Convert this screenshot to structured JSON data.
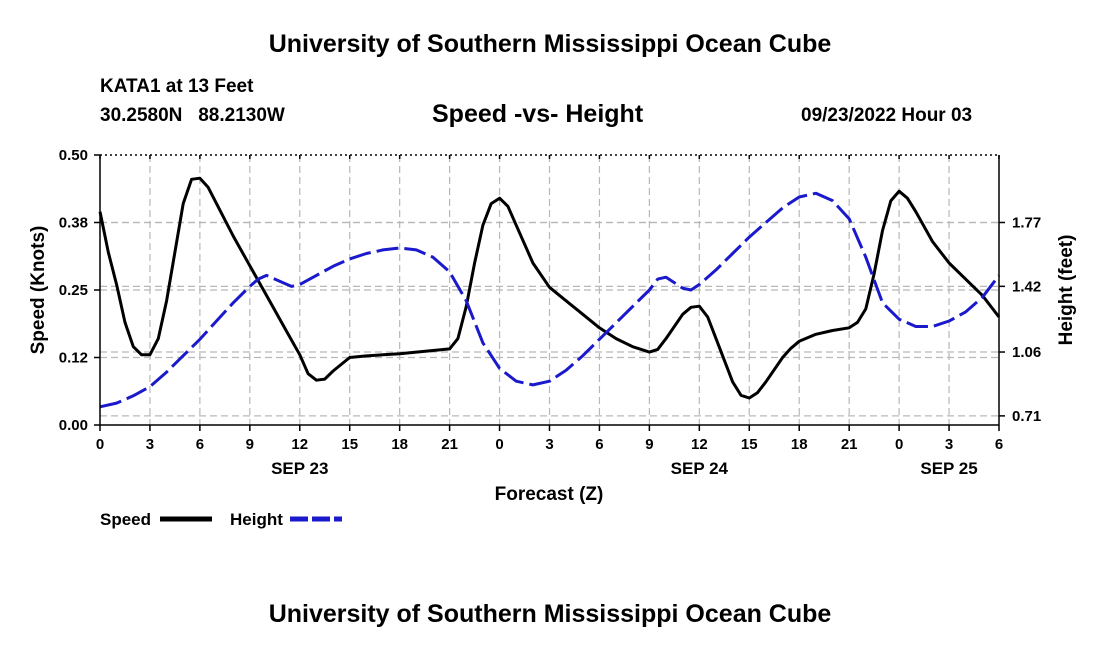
{
  "header": {
    "title": "University of Southern Mississippi Ocean Cube",
    "station": "KATA1 at 13 Feet",
    "coordinates": "30.2580N   88.2130W",
    "subtitle": "Speed -vs- Height",
    "datetime": "09/23/2022 Hour 03"
  },
  "footer": {
    "title": "University of Southern Mississippi Ocean Cube"
  },
  "chart_data": {
    "type": "line",
    "title": "Speed -vs- Height",
    "xlabel": "Forecast (Z)",
    "ylabel_left": "Speed (Knots)",
    "ylabel_right": "Height (feet)",
    "x_range_hours": [
      0,
      54
    ],
    "x_ticks": [
      {
        "hour": 0,
        "label": "0"
      },
      {
        "hour": 3,
        "label": "3"
      },
      {
        "hour": 6,
        "label": "6"
      },
      {
        "hour": 9,
        "label": "9"
      },
      {
        "hour": 12,
        "label": "12"
      },
      {
        "hour": 15,
        "label": "15"
      },
      {
        "hour": 18,
        "label": "18"
      },
      {
        "hour": 21,
        "label": "21"
      },
      {
        "hour": 24,
        "label": "0"
      },
      {
        "hour": 27,
        "label": "3"
      },
      {
        "hour": 30,
        "label": "6"
      },
      {
        "hour": 33,
        "label": "9"
      },
      {
        "hour": 36,
        "label": "12"
      },
      {
        "hour": 39,
        "label": "15"
      },
      {
        "hour": 42,
        "label": "18"
      },
      {
        "hour": 45,
        "label": "21"
      },
      {
        "hour": 48,
        "label": "0"
      },
      {
        "hour": 51,
        "label": "3"
      },
      {
        "hour": 54,
        "label": "6"
      }
    ],
    "date_labels": [
      {
        "hour": 12,
        "label": "SEP 23"
      },
      {
        "hour": 36,
        "label": "SEP 24"
      },
      {
        "hour": 51,
        "label": "SEP 25"
      }
    ],
    "y_left": {
      "range": [
        0,
        0.5
      ],
      "ticks": [
        {
          "value": 0.0,
          "label": "0.00"
        },
        {
          "value": 0.125,
          "label": "0.12"
        },
        {
          "value": 0.25,
          "label": "0.25"
        },
        {
          "value": 0.375,
          "label": "0.38"
        },
        {
          "value": 0.5,
          "label": "0.50"
        }
      ]
    },
    "y_right": {
      "range": [
        0.66,
        2.14
      ],
      "ticks": [
        {
          "value": 0.71,
          "label": "0.71"
        },
        {
          "value": 1.06,
          "label": "1.06"
        },
        {
          "value": 1.42,
          "label": "1.42"
        },
        {
          "value": 1.77,
          "label": "1.77"
        }
      ]
    },
    "grid": true,
    "series": [
      {
        "name": "Speed",
        "axis": "left",
        "color": "#000000",
        "style": "solid",
        "points": [
          [
            0,
            0.395
          ],
          [
            0.5,
            0.32
          ],
          [
            1,
            0.26
          ],
          [
            1.5,
            0.19
          ],
          [
            2,
            0.145
          ],
          [
            2.5,
            0.13
          ],
          [
            3,
            0.13
          ],
          [
            3.5,
            0.16
          ],
          [
            4,
            0.23
          ],
          [
            4.5,
            0.32
          ],
          [
            5,
            0.41
          ],
          [
            5.5,
            0.455
          ],
          [
            6,
            0.457
          ],
          [
            6.5,
            0.44
          ],
          [
            7,
            0.41
          ],
          [
            8,
            0.35
          ],
          [
            9,
            0.295
          ],
          [
            10,
            0.24
          ],
          [
            11,
            0.185
          ],
          [
            12,
            0.13
          ],
          [
            12.5,
            0.095
          ],
          [
            13,
            0.083
          ],
          [
            13.5,
            0.085
          ],
          [
            14,
            0.1
          ],
          [
            15,
            0.125
          ],
          [
            16,
            0.128
          ],
          [
            17,
            0.13
          ],
          [
            18,
            0.132
          ],
          [
            19,
            0.135
          ],
          [
            20,
            0.138
          ],
          [
            21,
            0.141
          ],
          [
            21.5,
            0.16
          ],
          [
            22,
            0.22
          ],
          [
            22.5,
            0.3
          ],
          [
            23,
            0.37
          ],
          [
            23.5,
            0.41
          ],
          [
            24,
            0.42
          ],
          [
            24.5,
            0.405
          ],
          [
            25,
            0.37
          ],
          [
            26,
            0.3
          ],
          [
            27,
            0.255
          ],
          [
            28,
            0.23
          ],
          [
            29,
            0.205
          ],
          [
            30,
            0.18
          ],
          [
            31,
            0.16
          ],
          [
            32,
            0.145
          ],
          [
            33,
            0.135
          ],
          [
            33.5,
            0.14
          ],
          [
            34,
            0.16
          ],
          [
            35,
            0.205
          ],
          [
            35.5,
            0.218
          ],
          [
            36,
            0.22
          ],
          [
            36.5,
            0.2
          ],
          [
            37,
            0.16
          ],
          [
            38,
            0.08
          ],
          [
            38.5,
            0.055
          ],
          [
            39,
            0.05
          ],
          [
            39.5,
            0.06
          ],
          [
            40,
            0.08
          ],
          [
            41,
            0.125
          ],
          [
            41.5,
            0.142
          ],
          [
            42,
            0.155
          ],
          [
            43,
            0.168
          ],
          [
            44,
            0.175
          ],
          [
            45,
            0.18
          ],
          [
            45.5,
            0.19
          ],
          [
            46,
            0.215
          ],
          [
            46.5,
            0.28
          ],
          [
            47,
            0.36
          ],
          [
            47.5,
            0.415
          ],
          [
            48,
            0.433
          ],
          [
            48.5,
            0.42
          ],
          [
            49,
            0.395
          ],
          [
            50,
            0.34
          ],
          [
            51,
            0.3
          ],
          [
            52,
            0.27
          ],
          [
            53,
            0.24
          ],
          [
            54,
            0.2
          ]
        ]
      },
      {
        "name": "Height",
        "axis": "right",
        "color": "#1a1acc",
        "style": "dashed",
        "points": [
          [
            0,
            0.76
          ],
          [
            1,
            0.78
          ],
          [
            2,
            0.82
          ],
          [
            3,
            0.87
          ],
          [
            4,
            0.95
          ],
          [
            5,
            1.04
          ],
          [
            6,
            1.13
          ],
          [
            7,
            1.23
          ],
          [
            8,
            1.33
          ],
          [
            9,
            1.42
          ],
          [
            9.5,
            1.46
          ],
          [
            10,
            1.48
          ],
          [
            11,
            1.44
          ],
          [
            11.5,
            1.42
          ],
          [
            12,
            1.43
          ],
          [
            13,
            1.48
          ],
          [
            14,
            1.53
          ],
          [
            15,
            1.57
          ],
          [
            16,
            1.6
          ],
          [
            17,
            1.62
          ],
          [
            18,
            1.63
          ],
          [
            19,
            1.62
          ],
          [
            20,
            1.58
          ],
          [
            21,
            1.5
          ],
          [
            22,
            1.34
          ],
          [
            23,
            1.11
          ],
          [
            24,
            0.97
          ],
          [
            25,
            0.9
          ],
          [
            26,
            0.88
          ],
          [
            27,
            0.9
          ],
          [
            28,
            0.96
          ],
          [
            29,
            1.04
          ],
          [
            30,
            1.13
          ],
          [
            31,
            1.22
          ],
          [
            32,
            1.31
          ],
          [
            33,
            1.4
          ],
          [
            33.5,
            1.46
          ],
          [
            34,
            1.47
          ],
          [
            35,
            1.41
          ],
          [
            35.5,
            1.4
          ],
          [
            36,
            1.43
          ],
          [
            37,
            1.51
          ],
          [
            38,
            1.6
          ],
          [
            39,
            1.69
          ],
          [
            40,
            1.77
          ],
          [
            41,
            1.85
          ],
          [
            42,
            1.91
          ],
          [
            43,
            1.93
          ],
          [
            44,
            1.89
          ],
          [
            45,
            1.79
          ],
          [
            46,
            1.58
          ],
          [
            47,
            1.33
          ],
          [
            48,
            1.24
          ],
          [
            49,
            1.2
          ],
          [
            50,
            1.2
          ],
          [
            51,
            1.23
          ],
          [
            52,
            1.28
          ],
          [
            53,
            1.36
          ],
          [
            54,
            1.48
          ]
        ]
      }
    ],
    "legend": {
      "position": "bottom-left",
      "entries": [
        "Speed",
        "Height"
      ]
    }
  }
}
